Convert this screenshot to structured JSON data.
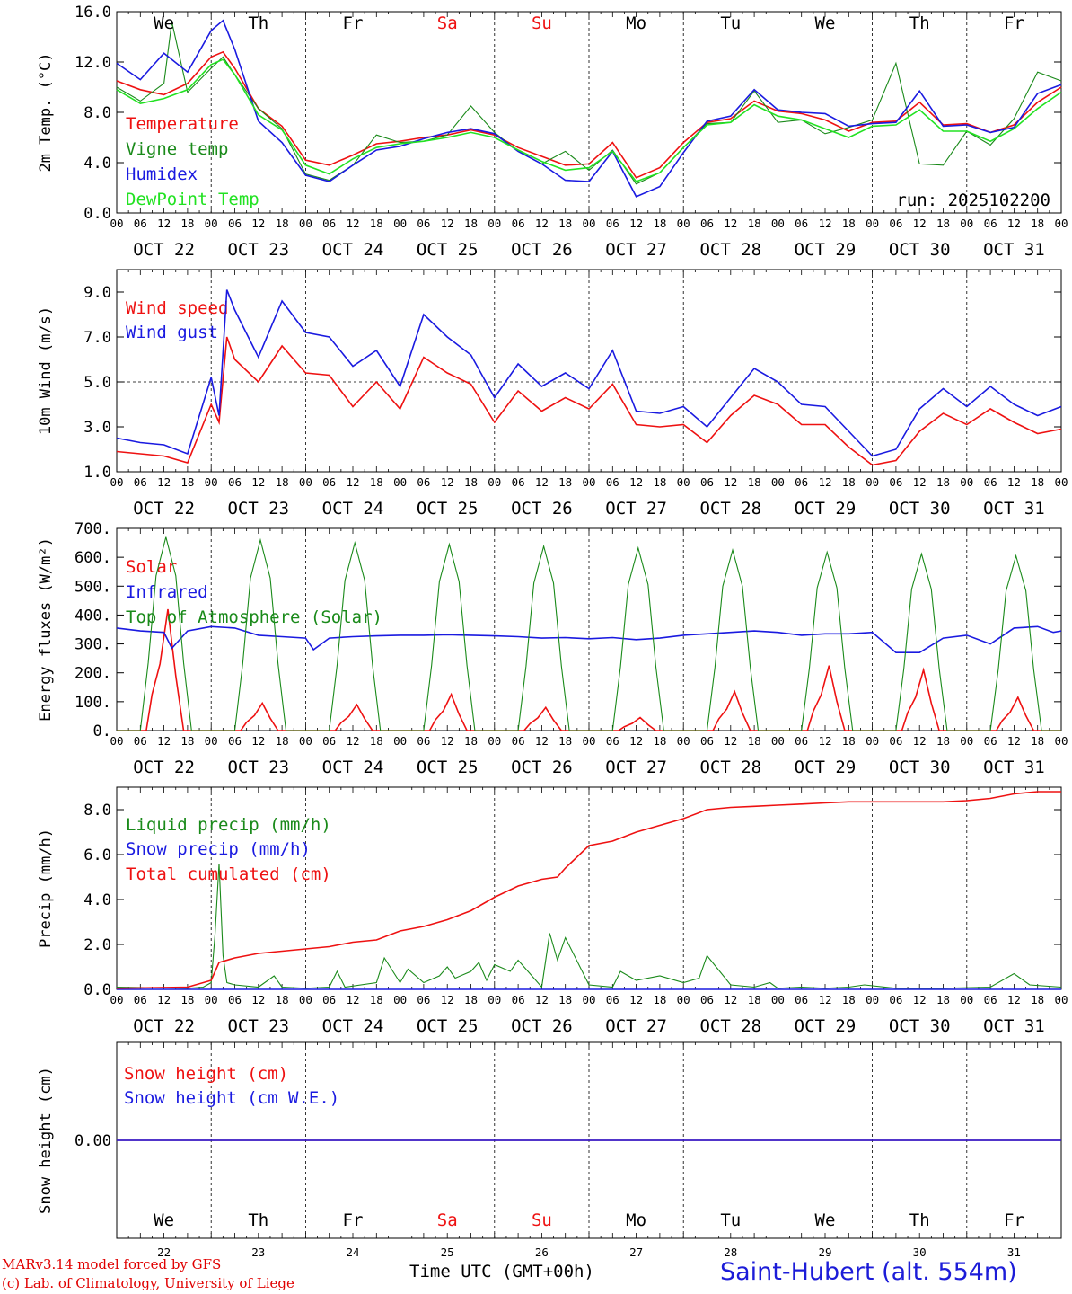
{
  "colors": {
    "red": "#ee1111",
    "green": "#1a8a1a",
    "blue": "#1a1ae0",
    "lime": "#22e222",
    "grid": "#000000"
  },
  "days": {
    "names": [
      "We",
      "Th",
      "Fr",
      "Sa",
      "Su",
      "Mo",
      "Tu",
      "We",
      "Th",
      "Fr"
    ],
    "weekend": [
      false,
      false,
      false,
      true,
      true,
      false,
      false,
      false,
      false,
      false
    ],
    "dates": [
      "OCT 22",
      "OCT 23",
      "OCT 24",
      "OCT 25",
      "OCT 26",
      "OCT 27",
      "OCT 28",
      "OCT 29",
      "OCT 30",
      "OCT 31"
    ],
    "numbers": [
      "22",
      "23",
      "24",
      "25",
      "26",
      "27",
      "28",
      "29",
      "30",
      "31"
    ],
    "hour_ticks": [
      "00",
      "06",
      "12",
      "18"
    ]
  },
  "chart_data": [
    {
      "type": "line",
      "id": "temp",
      "ylabel": "2m Temp. (°C)",
      "ylim": [
        0,
        16
      ],
      "yticks": [
        0,
        4,
        8,
        12,
        16
      ],
      "ytick_labels": [
        "0.0",
        "4.0",
        "8.0",
        "12.0",
        "16.0"
      ],
      "xlim": [
        0,
        240
      ],
      "run_label": "run: 2025102200",
      "series": [
        {
          "name": "Temperature",
          "color": "red",
          "x": [
            0,
            6,
            12,
            18,
            24,
            27,
            30,
            36,
            42,
            48,
            54,
            60,
            66,
            72,
            78,
            84,
            90,
            96,
            102,
            108,
            114,
            120,
            126,
            132,
            138,
            144,
            150,
            156,
            162,
            168,
            174,
            180,
            186,
            192,
            198,
            204,
            210,
            216,
            222,
            228,
            234,
            240
          ],
          "values": [
            10.5,
            9.8,
            9.4,
            10.3,
            12.4,
            12.8,
            11.5,
            8.3,
            6.9,
            4.2,
            3.8,
            4.6,
            5.5,
            5.7,
            6.0,
            6.2,
            6.6,
            6.2,
            5.2,
            4.5,
            3.8,
            3.9,
            5.6,
            2.8,
            3.6,
            5.6,
            7.2,
            7.5,
            8.9,
            8.1,
            7.9,
            7.4,
            6.5,
            7.2,
            7.3,
            8.8,
            7.0,
            7.1,
            6.4,
            7.0,
            8.8,
            10.0
          ]
        },
        {
          "name": "Vigne temp",
          "color": "green",
          "x": [
            0,
            6,
            12,
            14,
            18,
            24,
            27,
            30,
            36,
            42,
            48,
            54,
            60,
            66,
            72,
            78,
            84,
            90,
            96,
            102,
            108,
            114,
            120,
            126,
            132,
            138,
            144,
            150,
            156,
            162,
            168,
            174,
            180,
            186,
            192,
            198,
            204,
            210,
            216,
            222,
            228,
            234,
            240
          ],
          "values": [
            10.0,
            8.9,
            10.3,
            15.2,
            9.6,
            11.5,
            12.4,
            11.0,
            8.3,
            6.7,
            3.1,
            2.6,
            3.8,
            6.2,
            5.6,
            5.7,
            6.2,
            8.5,
            6.4,
            4.9,
            3.9,
            4.9,
            3.4,
            5.0,
            2.3,
            3.2,
            5.2,
            7.1,
            7.2,
            9.7,
            7.2,
            7.4,
            6.3,
            6.8,
            7.4,
            11.9,
            3.9,
            3.8,
            6.5,
            5.4,
            7.5,
            11.2,
            10.5
          ]
        },
        {
          "name": "Humidex",
          "color": "blue",
          "x": [
            0,
            6,
            12,
            18,
            24,
            27,
            30,
            36,
            42,
            48,
            54,
            60,
            66,
            72,
            78,
            84,
            90,
            96,
            102,
            108,
            114,
            120,
            126,
            132,
            138,
            144,
            150,
            156,
            162,
            168,
            174,
            180,
            186,
            192,
            198,
            204,
            210,
            216,
            222,
            228,
            234,
            240
          ],
          "values": [
            11.9,
            10.6,
            12.7,
            11.2,
            14.5,
            15.3,
            13.0,
            7.3,
            5.6,
            3.0,
            2.5,
            3.8,
            5.0,
            5.3,
            5.9,
            6.4,
            6.7,
            6.3,
            4.9,
            3.9,
            2.6,
            2.5,
            4.9,
            1.3,
            2.1,
            4.8,
            7.3,
            7.7,
            9.8,
            8.2,
            8.0,
            7.9,
            6.9,
            7.1,
            7.2,
            9.7,
            6.9,
            7.0,
            6.4,
            6.8,
            9.5,
            10.2
          ]
        },
        {
          "name": "DewPoint Temp",
          "color": "lime",
          "x": [
            0,
            6,
            12,
            18,
            24,
            27,
            30,
            36,
            42,
            48,
            54,
            60,
            66,
            72,
            78,
            84,
            90,
            96,
            102,
            108,
            114,
            120,
            126,
            132,
            138,
            144,
            150,
            156,
            162,
            168,
            174,
            180,
            186,
            192,
            198,
            204,
            210,
            216,
            222,
            228,
            234,
            240
          ],
          "values": [
            9.8,
            8.7,
            9.1,
            9.8,
            11.8,
            12.2,
            11.0,
            7.8,
            6.6,
            3.8,
            3.1,
            4.3,
            5.2,
            5.5,
            5.7,
            6.0,
            6.4,
            6.0,
            5.0,
            4.1,
            3.4,
            3.6,
            4.9,
            2.5,
            3.2,
            5.2,
            7.0,
            7.2,
            8.6,
            7.7,
            7.4,
            6.7,
            6.0,
            6.9,
            7.0,
            8.2,
            6.5,
            6.5,
            5.7,
            6.7,
            8.3,
            9.6
          ]
        }
      ]
    },
    {
      "type": "line",
      "id": "wind",
      "ylabel": "10m Wind (m/s)",
      "ylim": [
        1,
        10
      ],
      "yticks": [
        1,
        3,
        5,
        7,
        9
      ],
      "ytick_labels": [
        "1.0",
        "3.0",
        "5.0",
        "7.0",
        "9.0"
      ],
      "xlim": [
        0,
        240
      ],
      "ref_line": 5,
      "series": [
        {
          "name": "Wind speed",
          "color": "red",
          "x": [
            0,
            6,
            12,
            18,
            24,
            26,
            28,
            30,
            36,
            42,
            48,
            54,
            60,
            66,
            72,
            78,
            84,
            90,
            96,
            102,
            108,
            114,
            120,
            126,
            132,
            138,
            144,
            150,
            156,
            162,
            168,
            174,
            180,
            186,
            192,
            198,
            204,
            210,
            216,
            222,
            228,
            234,
            240
          ],
          "values": [
            1.9,
            1.8,
            1.7,
            1.4,
            4.0,
            3.2,
            7.0,
            6.0,
            5.0,
            6.6,
            5.4,
            5.3,
            3.9,
            5.0,
            3.8,
            6.1,
            5.4,
            4.9,
            3.2,
            4.6,
            3.7,
            4.3,
            3.8,
            4.9,
            3.1,
            3.0,
            3.1,
            2.3,
            3.5,
            4.4,
            4.0,
            3.1,
            3.1,
            2.1,
            1.3,
            1.5,
            2.8,
            3.6,
            3.1,
            3.8,
            3.2,
            2.7,
            2.9
          ]
        },
        {
          "name": "Wind gust",
          "color": "blue",
          "x": [
            0,
            6,
            12,
            18,
            24,
            26,
            28,
            30,
            36,
            42,
            48,
            54,
            60,
            66,
            72,
            78,
            84,
            90,
            96,
            102,
            108,
            114,
            120,
            126,
            132,
            138,
            144,
            150,
            156,
            162,
            168,
            174,
            180,
            186,
            192,
            198,
            204,
            210,
            216,
            222,
            228,
            234,
            240
          ],
          "values": [
            2.5,
            2.3,
            2.2,
            1.8,
            5.2,
            3.5,
            9.1,
            8.2,
            6.1,
            8.6,
            7.2,
            7.0,
            5.7,
            6.4,
            4.8,
            8.0,
            7.0,
            6.2,
            4.3,
            5.8,
            4.8,
            5.4,
            4.7,
            6.4,
            3.7,
            3.6,
            3.9,
            3.0,
            4.3,
            5.6,
            5.0,
            4.0,
            3.9,
            2.8,
            1.7,
            2.0,
            3.8,
            4.7,
            3.9,
            4.8,
            4.0,
            3.5,
            3.9
          ]
        }
      ]
    },
    {
      "type": "line",
      "id": "energy",
      "ylabel": "Energy fluxes (W/m²)",
      "ylim": [
        0,
        700
      ],
      "yticks": [
        0,
        100,
        200,
        300,
        400,
        500,
        600,
        700
      ],
      "ytick_labels": [
        "0.",
        "100.",
        "200.",
        "300.",
        "400.",
        "500.",
        "600.",
        "700."
      ],
      "xlim": [
        0,
        240
      ],
      "daily_peaks": {
        "toa": [
          670,
          660,
          650,
          645,
          638,
          632,
          625,
          618,
          612,
          605
        ],
        "solar": [
          420,
          95,
          90,
          125,
          80,
          45,
          135,
          225,
          210,
          115
        ]
      },
      "series": [
        {
          "name": "Solar",
          "color": "red"
        },
        {
          "name": "Infrared",
          "color": "blue",
          "x": [
            0,
            6,
            12,
            14,
            18,
            24,
            30,
            36,
            42,
            48,
            50,
            54,
            60,
            66,
            72,
            78,
            84,
            90,
            96,
            102,
            108,
            114,
            120,
            126,
            132,
            138,
            144,
            150,
            156,
            162,
            168,
            174,
            180,
            186,
            192,
            198,
            204,
            210,
            216,
            222,
            228,
            234,
            238,
            240
          ],
          "values": [
            355,
            345,
            340,
            285,
            345,
            360,
            355,
            330,
            325,
            320,
            280,
            320,
            325,
            328,
            330,
            330,
            332,
            330,
            328,
            325,
            320,
            322,
            318,
            322,
            315,
            320,
            330,
            335,
            340,
            345,
            340,
            330,
            335,
            335,
            340,
            270,
            270,
            320,
            330,
            300,
            355,
            360,
            340,
            345
          ]
        },
        {
          "name": "Top of Atmosphere (Solar)",
          "color": "green"
        }
      ]
    },
    {
      "type": "line",
      "id": "precip",
      "ylabel": "Precip (mm/h)",
      "ylim": [
        0,
        9
      ],
      "yticks": [
        0,
        2,
        4,
        6,
        8
      ],
      "ytick_labels": [
        "0.0",
        "2.0",
        "4.0",
        "6.0",
        "8.0"
      ],
      "xlim": [
        0,
        240
      ],
      "series": [
        {
          "name": "Liquid precip (mm/h)",
          "color": "green",
          "x": [
            0,
            18,
            22,
            24,
            25,
            26,
            27,
            28,
            30,
            36,
            40,
            42,
            48,
            54,
            56,
            58,
            66,
            68,
            72,
            74,
            78,
            82,
            84,
            86,
            90,
            92,
            94,
            96,
            100,
            102,
            108,
            110,
            112,
            114,
            120,
            126,
            128,
            132,
            138,
            144,
            148,
            150,
            156,
            162,
            166,
            168,
            174,
            180,
            186,
            190,
            198,
            210,
            222,
            228,
            232,
            240
          ],
          "values": [
            0.1,
            0.05,
            0.1,
            0.3,
            2.5,
            5.6,
            1.5,
            0.3,
            0.2,
            0.1,
            0.6,
            0.1,
            0.05,
            0.1,
            0.8,
            0.1,
            0.3,
            1.4,
            0.3,
            0.9,
            0.3,
            0.6,
            1.0,
            0.5,
            0.8,
            1.2,
            0.4,
            1.1,
            0.8,
            1.3,
            0.1,
            2.5,
            1.3,
            2.3,
            0.2,
            0.1,
            0.8,
            0.4,
            0.6,
            0.3,
            0.5,
            1.5,
            0.2,
            0.1,
            0.3,
            0.05,
            0.1,
            0.05,
            0.1,
            0.2,
            0.05,
            0.05,
            0.1,
            0.7,
            0.2,
            0.1
          ]
        },
        {
          "name": "Snow precip (mm/h)",
          "color": "blue",
          "x": [
            0,
            240
          ],
          "values": [
            0,
            0
          ]
        },
        {
          "name": "Total cumulated (cm)",
          "color": "red",
          "x": [
            0,
            18,
            24,
            26,
            30,
            36,
            42,
            48,
            54,
            60,
            66,
            72,
            78,
            84,
            90,
            96,
            102,
            108,
            112,
            114,
            120,
            126,
            132,
            138,
            144,
            150,
            156,
            162,
            168,
            174,
            180,
            186,
            192,
            198,
            204,
            210,
            216,
            222,
            228,
            234,
            240
          ],
          "values": [
            0.05,
            0.1,
            0.4,
            1.2,
            1.4,
            1.6,
            1.7,
            1.8,
            1.9,
            2.1,
            2.2,
            2.6,
            2.8,
            3.1,
            3.5,
            4.1,
            4.6,
            4.9,
            5.0,
            5.4,
            6.4,
            6.6,
            7.0,
            7.3,
            7.6,
            8.0,
            8.1,
            8.15,
            8.2,
            8.25,
            8.3,
            8.35,
            8.35,
            8.35,
            8.35,
            8.35,
            8.4,
            8.5,
            8.7,
            8.8,
            8.8
          ]
        }
      ]
    },
    {
      "type": "line",
      "id": "snow",
      "ylabel": "Snow height (cm)",
      "ylim": [
        -1,
        1
      ],
      "yticks": [
        0
      ],
      "ytick_labels": [
        "0.00"
      ],
      "xlim": [
        0,
        240
      ],
      "series": [
        {
          "name": "Snow height (cm)",
          "color": "red",
          "x": [
            0,
            240
          ],
          "values": [
            0,
            0
          ]
        },
        {
          "name": "Snow height (cm W.E.)",
          "color": "blue",
          "x": [
            0,
            240
          ],
          "values": [
            0,
            0
          ]
        }
      ]
    }
  ],
  "footer": {
    "credit_line1": "MARv3.14 model forced by GFS",
    "credit_line2": "(c) Lab. of Climatology, University of Liege",
    "xaxis_title": "Time UTC (GMT+00h)",
    "station": "Saint-Hubert (alt. 554m)"
  }
}
